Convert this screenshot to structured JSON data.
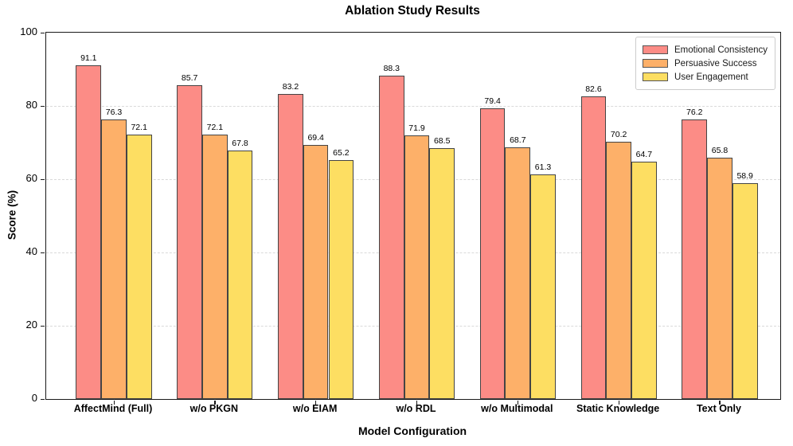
{
  "chart_data": {
    "type": "bar",
    "title": "Ablation Study Results",
    "xlabel": "Model Configuration",
    "ylabel": "Score (%)",
    "ylim": [
      0,
      100
    ],
    "yticks": [
      0,
      20,
      40,
      60,
      80,
      100
    ],
    "gridlines_at": [
      20,
      40,
      60,
      80
    ],
    "grid_style": "dashed",
    "legend_position": "upper-right",
    "categories": [
      "AffectMind (Full)",
      "w/o PKGN",
      "w/o EIAM",
      "w/o RDL",
      "w/o Multimodal",
      "Static Knowledge",
      "Text Only"
    ],
    "series": [
      {
        "name": "Emotional Consistency",
        "color": "#FC8C86",
        "values": [
          91.1,
          85.7,
          83.2,
          88.3,
          79.4,
          82.6,
          76.2
        ]
      },
      {
        "name": "Persuasive Success",
        "color": "#FDB069",
        "values": [
          76.3,
          72.1,
          69.4,
          71.9,
          68.7,
          70.2,
          65.8
        ]
      },
      {
        "name": "User Engagement",
        "color": "#FDDE62",
        "values": [
          72.1,
          67.8,
          65.2,
          68.5,
          61.3,
          64.7,
          58.9
        ]
      }
    ],
    "bar_edge_color": "#444444"
  }
}
